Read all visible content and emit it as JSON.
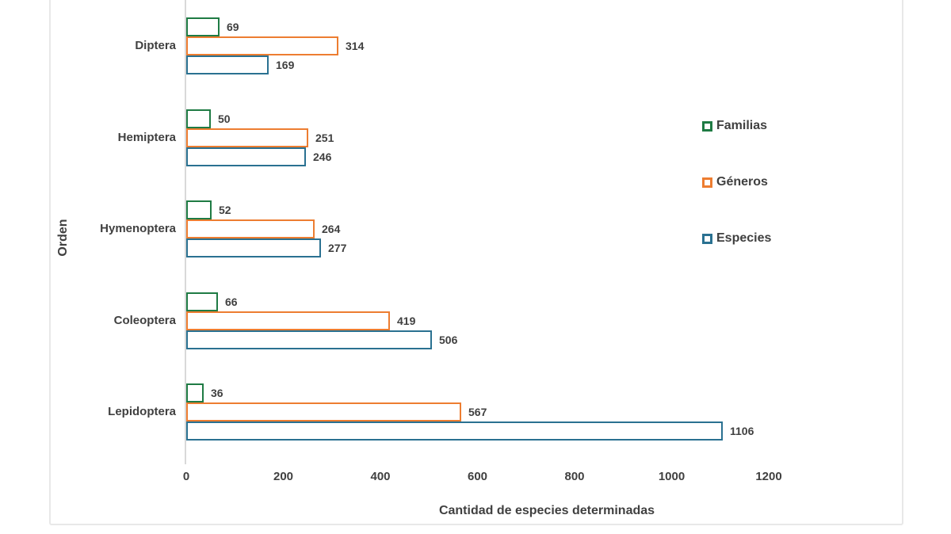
{
  "chart_data": {
    "type": "bar",
    "orientation": "horizontal",
    "title": "",
    "xlabel": "Cantidad de especies determinadas",
    "ylabel": "Orden",
    "categories": [
      "Diptera",
      "Hemiptera",
      "Hymenoptera",
      "Coleoptera",
      "Lepidoptera"
    ],
    "series": [
      {
        "name": "Familias",
        "color": "#1F7B44",
        "values": [
          69,
          50,
          52,
          66,
          36
        ]
      },
      {
        "name": "Géneros",
        "color": "#ED7D31",
        "values": [
          314,
          251,
          264,
          419,
          567
        ]
      },
      {
        "name": "Especies",
        "color": "#2A7191",
        "values": [
          169,
          246,
          277,
          506,
          1106
        ]
      }
    ],
    "xlim": [
      0,
      1200
    ],
    "xticks": [
      0,
      200,
      400,
      600,
      800,
      1000,
      1200
    ],
    "grid": false,
    "legend_position": "right",
    "bar_style": "outlined-white-fill",
    "frame_color": "#E8E8E8",
    "axis_line_color": "#D9D9D9",
    "text_color": "#404040"
  }
}
